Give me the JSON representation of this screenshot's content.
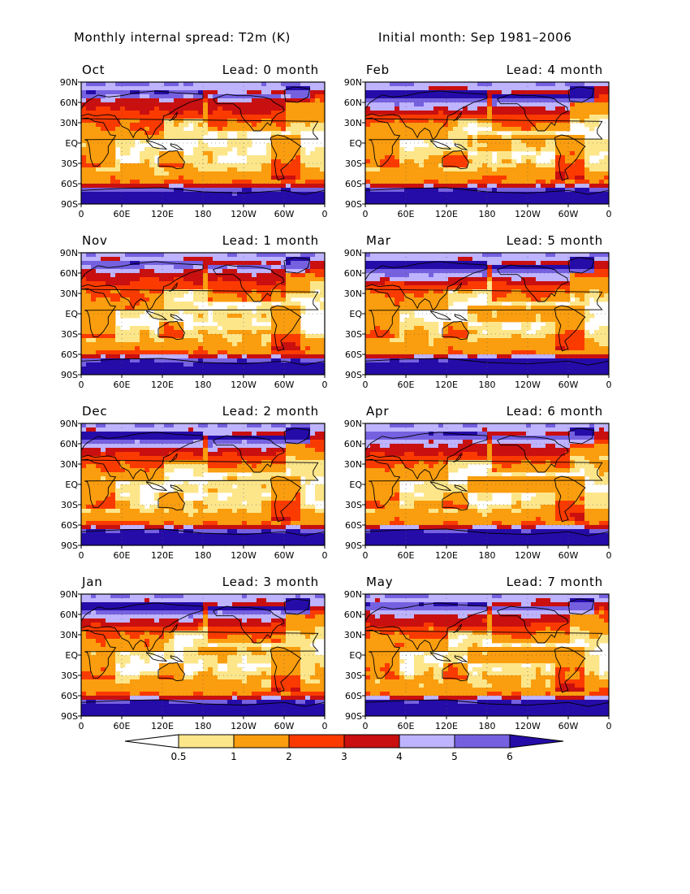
{
  "header": {
    "title_left": "Monthly internal spread: T2m (K)",
    "title_right": "Initial month: Sep 1981–2006"
  },
  "chart_data": {
    "type": "heatmap",
    "variable": "T2m",
    "unit": "K",
    "colorbar": {
      "levels": [
        "0.5",
        "1",
        "2",
        "3",
        "4",
        "5",
        "6"
      ],
      "colors": [
        "#ffffff",
        "#fde68a",
        "#fa9d0e",
        "#fb3a00",
        "#c90f0f",
        "#beb3ff",
        "#7561e0",
        "#250ca8"
      ]
    },
    "y_ticks": [
      "90N",
      "60N",
      "30N",
      "EQ",
      "30S",
      "60S",
      "90S"
    ],
    "x_ticks": [
      "0",
      "60E",
      "120E",
      "180",
      "120W",
      "60W",
      "0"
    ],
    "panels": [
      {
        "month": "Oct",
        "lead": "Lead: 0 month",
        "lead_value": 0
      },
      {
        "month": "Feb",
        "lead": "Lead: 4 month",
        "lead_value": 4
      },
      {
        "month": "Nov",
        "lead": "Lead: 1 month",
        "lead_value": 1
      },
      {
        "month": "Mar",
        "lead": "Lead: 5 month",
        "lead_value": 5
      },
      {
        "month": "Dec",
        "lead": "Lead: 2 month",
        "lead_value": 2
      },
      {
        "month": "Apr",
        "lead": "Lead: 6 month",
        "lead_value": 6
      },
      {
        "month": "Jan",
        "lead": "Lead: 3 month",
        "lead_value": 3
      },
      {
        "month": "May",
        "lead": "Lead: 7 month",
        "lead_value": 7
      }
    ],
    "panel_x_ticks": [
      [
        "0",
        "60E",
        "120E",
        "180",
        "120W",
        "60W",
        "0"
      ],
      [
        "0",
        "60E",
        "120E",
        "180",
        "120W",
        "60W",
        "0"
      ],
      [
        "0",
        "60E",
        "120E",
        "180",
        "120W",
        "60W",
        "0"
      ],
      [
        "0",
        "60E",
        "120E",
        "180",
        "120W",
        "60W",
        "0"
      ],
      [
        "0",
        "60E",
        "120E",
        "180",
        "120W",
        "60W",
        "0"
      ],
      [
        "0",
        "60E",
        "120E",
        "180",
        "120W",
        "60W",
        "0"
      ],
      [
        "0",
        "60E",
        "120E",
        "180",
        "120W",
        "60W",
        "0"
      ],
      [
        "0",
        "60E",
        "120E",
        "180",
        "120W",
        "60W",
        "0"
      ]
    ],
    "panel_y_ticks": [
      [
        "90N",
        "60N",
        "30N",
        "EQ",
        "30S",
        "60S",
        "90S"
      ],
      [
        "90N",
        "60N",
        "30N",
        "EQ",
        "30S",
        "60S",
        "90S"
      ],
      [
        "90N",
        "60N",
        "30N",
        "EQ",
        "30S",
        "60S",
        "90S"
      ],
      [
        "90N",
        "60N",
        "30N",
        "EQ",
        "30S",
        "60S",
        "90S"
      ],
      [
        "90N",
        "60N",
        "30N",
        "EQ",
        "30S",
        "60S",
        "90S"
      ],
      [
        "90N",
        "60N",
        "30N",
        "EQ",
        "30S",
        "60S",
        "90S"
      ],
      [
        "90N",
        "60N",
        "30N",
        "EQ",
        "30S",
        "60S",
        "90S"
      ],
      [
        "90N",
        "60N",
        "30N",
        "EQ",
        "30S",
        "60S",
        "90S"
      ]
    ],
    "panel_x_tick_label_overrides": {
      "6": [
        "0",
        "60E",
        "120E",
        "180",
        "120W",
        "60W",
        "0"
      ],
      "7": [
        "0",
        "60E",
        "120E",
        "180",
        "120W",
        "60W",
        "0"
      ]
    },
    "colorbar_extra_labels_note": "",
    "colorbar_extended_ticks_bottom_row": [
      "0",
      "60E",
      "120E",
      "180",
      "120W",
      "60W",
      "0"
    ]
  }
}
